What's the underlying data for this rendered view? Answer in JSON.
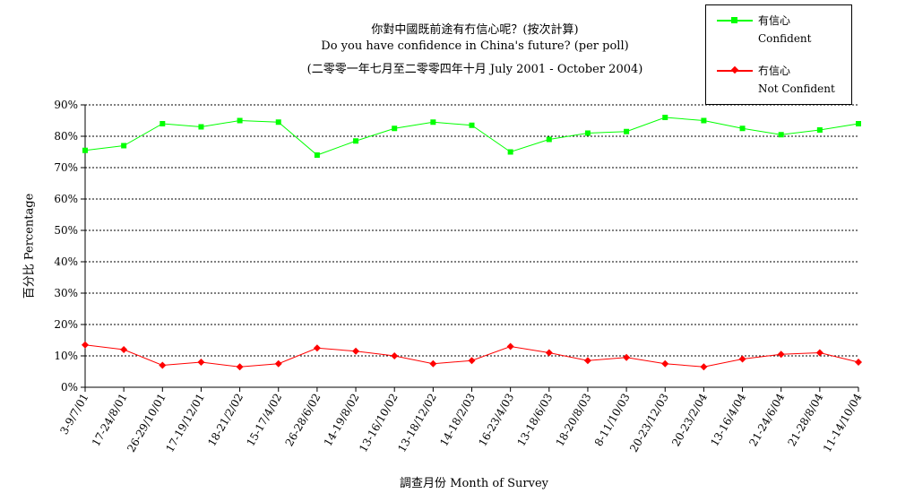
{
  "titles": {
    "line1": "你對中國既前途有冇信心呢？(按次計算)",
    "line2": "Do you have confidence in China's future? (per poll)",
    "line3": "(二零零一年七月至二零零四年十月 July 2001 - October 2004)"
  },
  "legend": {
    "confident_cn": "有信心",
    "confident_en": "Confident",
    "not_confident_cn": "冇信心",
    "not_confident_en": "Not Confident"
  },
  "chart_data": {
    "type": "line",
    "title": "你對中國既前途有冇信心呢？(按次計算)",
    "xlabel": "調查月份 Month of Survey",
    "ylabel": "百分比 Percentage",
    "ylim": [
      0,
      90
    ],
    "yticks": [
      "0%",
      "10%",
      "20%",
      "30%",
      "40%",
      "50%",
      "60%",
      "70%",
      "80%",
      "90%"
    ],
    "grid": "horizontal dotted",
    "legend_position": "top-right",
    "categories": [
      "3-9/7/01",
      "17-24/8/01",
      "26-29/10/01",
      "17-19/12/01",
      "18-21/2/02",
      "15-17/4/02",
      "26-28/6/02",
      "14-19/8/02",
      "13-16/10/02",
      "13-18/12/02",
      "14-18/2/03",
      "16-23/4/03",
      "13-18/6/03",
      "18-20/8/03",
      "8-11/10/03",
      "20-23/12/03",
      "20-23/2/04",
      "13-16/4/04",
      "21-24/6/04",
      "21-28/8/04",
      "11-14/10/04"
    ],
    "series": [
      {
        "name": "有信心 Confident",
        "color": "#00ff00",
        "marker": "square",
        "values": [
          75.5,
          77,
          84,
          83,
          85,
          84.5,
          74,
          78.5,
          82.5,
          84.5,
          83.5,
          75,
          79,
          81,
          81.5,
          86,
          85,
          82.5,
          80.5,
          82,
          84
        ]
      },
      {
        "name": "冇信心 Not Confident",
        "color": "#ff0000",
        "marker": "diamond",
        "values": [
          13.5,
          12,
          7,
          8,
          6.5,
          7.5,
          12.5,
          11.5,
          10,
          7.5,
          8.5,
          13,
          11,
          8.5,
          9.5,
          7.5,
          6.5,
          9,
          10.5,
          11,
          8
        ]
      }
    ]
  }
}
